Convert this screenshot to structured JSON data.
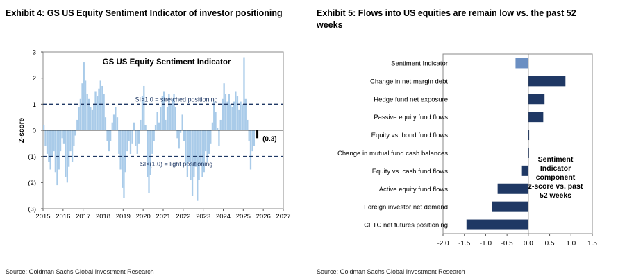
{
  "left": {
    "exhibit_title": "Exhibit 4: GS US Equity Sentiment Indicator of investor positioning",
    "source": "Source: Goldman Sachs Global Investment Research"
  },
  "right": {
    "exhibit_title": "Exhibit 5: Flows into US equities are remain low vs. the past 52 weeks",
    "source": "Source: Goldman Sachs Global Investment Research"
  },
  "chart_data": [
    {
      "type": "bar",
      "title": "GS US Equity Sentiment Indicator",
      "ylabel": "Z-score",
      "xlabel": "",
      "ylim": [
        -3,
        3
      ],
      "xlim": [
        2015,
        2027
      ],
      "y_ticks": [
        "3",
        "2",
        "1",
        "0",
        "(1)",
        "(2)",
        "(3)"
      ],
      "x_ticks": [
        "2015",
        "2016",
        "2017",
        "2018",
        "2019",
        "2020",
        "2021",
        "2022",
        "2023",
        "2024",
        "2025",
        "2026",
        "2027"
      ],
      "x_tick_values": [
        2015,
        2016,
        2017,
        2018,
        2019,
        2020,
        2021,
        2022,
        2023,
        2024,
        2025,
        2026,
        2027
      ],
      "y_tick_values": [
        3,
        2,
        1,
        0,
        -1,
        -2,
        -3
      ],
      "thresholds": [
        {
          "value": 1.0,
          "label": "SI>1.0 = stretched positioning"
        },
        {
          "value": -1.0,
          "label": "SI<(1.0) = light positioning"
        }
      ],
      "latest": {
        "x": 2025.65,
        "value": -0.3,
        "label": "(0.3)"
      },
      "colors": {
        "bars": "#a9cbe9",
        "latest": "#000000",
        "threshold": "#1f3864"
      },
      "series": [
        {
          "name": "Sentiment Indicator (approx. monthly)",
          "x": [
            2015.0,
            2015.08,
            2015.17,
            2015.25,
            2015.33,
            2015.42,
            2015.5,
            2015.58,
            2015.67,
            2015.75,
            2015.83,
            2015.92,
            2016.0,
            2016.08,
            2016.17,
            2016.25,
            2016.33,
            2016.42,
            2016.5,
            2016.58,
            2016.67,
            2016.75,
            2016.83,
            2016.92,
            2017.0,
            2017.08,
            2017.17,
            2017.25,
            2017.33,
            2017.42,
            2017.5,
            2017.58,
            2017.67,
            2017.75,
            2017.83,
            2017.92,
            2018.0,
            2018.08,
            2018.17,
            2018.25,
            2018.33,
            2018.42,
            2018.5,
            2018.58,
            2018.67,
            2018.75,
            2018.83,
            2018.92,
            2019.0,
            2019.08,
            2019.17,
            2019.25,
            2019.33,
            2019.42,
            2019.5,
            2019.58,
            2019.67,
            2019.75,
            2019.83,
            2019.92,
            2020.0,
            2020.08,
            2020.17,
            2020.25,
            2020.33,
            2020.42,
            2020.5,
            2020.58,
            2020.67,
            2020.75,
            2020.83,
            2020.92,
            2021.0,
            2021.08,
            2021.17,
            2021.25,
            2021.33,
            2021.42,
            2021.5,
            2021.58,
            2021.67,
            2021.75,
            2021.83,
            2021.92,
            2022.0,
            2022.08,
            2022.17,
            2022.25,
            2022.33,
            2022.42,
            2022.5,
            2022.58,
            2022.67,
            2022.75,
            2022.83,
            2022.92,
            2023.0,
            2023.08,
            2023.17,
            2023.25,
            2023.33,
            2023.42,
            2023.5,
            2023.58,
            2023.67,
            2023.75,
            2023.83,
            2023.92,
            2024.0,
            2024.08,
            2024.17,
            2024.25,
            2024.33,
            2024.42,
            2024.5,
            2024.58,
            2024.67,
            2024.75,
            2024.83,
            2024.92,
            2025.0,
            2025.08,
            2025.17,
            2025.25,
            2025.33,
            2025.42,
            2025.5
          ],
          "values": [
            0.2,
            -0.6,
            -0.9,
            -1.2,
            -1.5,
            -1.0,
            -0.8,
            -1.6,
            -2.1,
            -1.5,
            -0.8,
            -0.3,
            -0.5,
            -1.8,
            -2.0,
            -1.4,
            -0.8,
            -1.2,
            -0.6,
            -0.2,
            0.4,
            0.9,
            1.2,
            1.8,
            2.6,
            1.9,
            1.4,
            1.2,
            0.9,
            0.8,
            1.0,
            1.5,
            1.3,
            1.6,
            1.9,
            1.7,
            1.4,
            0.5,
            -0.4,
            -0.8,
            -0.4,
            0.3,
            0.6,
            0.9,
            0.5,
            -0.9,
            -1.5,
            -2.2,
            -2.6,
            -1.6,
            -0.8,
            -0.4,
            -0.9,
            -0.5,
            0.3,
            -0.6,
            -0.9,
            -0.5,
            0.4,
            1.3,
            1.7,
            0.2,
            -1.8,
            -2.4,
            -1.7,
            -0.9,
            -0.4,
            0.2,
            0.7,
            0.3,
            0.9,
            1.3,
            1.5,
            0.4,
            0.9,
            1.4,
            1.0,
            1.2,
            1.4,
            0.9,
            -0.3,
            -0.7,
            -0.1,
            0.6,
            -0.4,
            -1.3,
            -1.8,
            -1.2,
            -1.9,
            -2.5,
            -1.8,
            -1.4,
            -2.7,
            -1.9,
            -1.3,
            -1.8,
            -1.6,
            -0.8,
            -1.2,
            -0.9,
            -0.5,
            0.3,
            1.1,
            0.7,
            0.1,
            -0.6,
            0.4,
            1.2,
            1.8,
            1.4,
            1.1,
            1.4,
            1.0,
            0.9,
            1.1,
            1.5,
            1.3,
            0.8,
            1.1,
            1.0,
            2.8,
            1.2,
            0.4,
            -0.4,
            -1.5,
            -0.8,
            -0.6
          ]
        }
      ]
    },
    {
      "type": "bar",
      "orientation": "horizontal",
      "title": "",
      "xlim": [
        -2.0,
        1.5
      ],
      "x_ticks": [
        "-2.0",
        "-1.5",
        "-1.0",
        "-0.5",
        "0.0",
        "0.5",
        "1.0",
        "1.5"
      ],
      "x_tick_values": [
        -2.0,
        -1.5,
        -1.0,
        -0.5,
        0.0,
        0.5,
        1.0,
        1.5
      ],
      "legend": "Sentiment Indicator component z-score vs. past 52 weeks",
      "legend_lines": [
        "Sentiment",
        "Indicator",
        "component",
        "z-score vs. past",
        "52 weeks"
      ],
      "colors": {
        "navy": "#1f3864",
        "highlight": "#6b8fc2"
      },
      "categories": [
        "Sentiment Indicator",
        "Change in net margin debt",
        "Hedge fund net exposure",
        "Passive equity fund flows",
        "Equity vs. bond fund flows",
        "Change in mutual fund cash balances",
        "Equity vs. cash fund flows",
        "Active equity fund flows",
        "Foreign investor net demand",
        "CFTC net futures positioning"
      ],
      "values": [
        -0.3,
        0.87,
        0.38,
        0.35,
        0.02,
        0.01,
        -0.15,
        -0.72,
        -0.85,
        -1.45
      ]
    }
  ]
}
